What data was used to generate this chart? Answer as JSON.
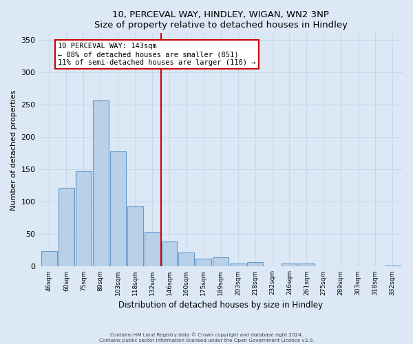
{
  "title": "10, PERCEVAL WAY, HINDLEY, WIGAN, WN2 3NP",
  "subtitle": "Size of property relative to detached houses in Hindley",
  "xlabel": "Distribution of detached houses by size in Hindley",
  "ylabel": "Number of detached properties",
  "bar_labels": [
    "46sqm",
    "60sqm",
    "75sqm",
    "89sqm",
    "103sqm",
    "118sqm",
    "132sqm",
    "146sqm",
    "160sqm",
    "175sqm",
    "189sqm",
    "203sqm",
    "218sqm",
    "232sqm",
    "246sqm",
    "261sqm",
    "275sqm",
    "289sqm",
    "303sqm",
    "318sqm",
    "332sqm"
  ],
  "bar_values": [
    24,
    121,
    147,
    256,
    178,
    93,
    54,
    39,
    22,
    12,
    14,
    5,
    7,
    0,
    5,
    5,
    0,
    0,
    0,
    0,
    2
  ],
  "bar_color": "#b8d0e8",
  "bar_edge_color": "#6699cc",
  "marker_line_color": "#cc0000",
  "annotation_line1": "10 PERCEVAL WAY: 143sqm",
  "annotation_line2": "← 88% of detached houses are smaller (851)",
  "annotation_line3": "11% of semi-detached houses are larger (110) →",
  "annotation_box_facecolor": "#ffffff",
  "annotation_box_edgecolor": "#cc0000",
  "ylim": [
    0,
    360
  ],
  "yticks": [
    0,
    50,
    100,
    150,
    200,
    250,
    300,
    350
  ],
  "grid_color": "#c8d8e8",
  "background_color": "#dce8f5",
  "footer_line1": "Contains HM Land Registry data © Crown copyright and database right 2024.",
  "footer_line2": "Contains public sector information licensed under the Open Government Licence v3.0."
}
